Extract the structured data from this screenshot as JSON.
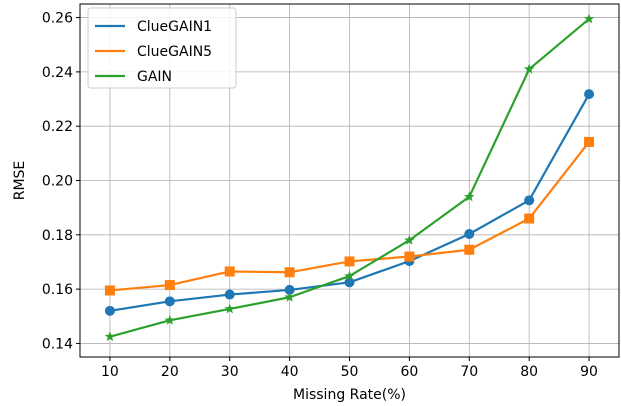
{
  "chart_data": {
    "type": "line",
    "title": "",
    "xlabel": "Missing Rate(%)",
    "ylabel": "RMSE",
    "x": [
      10,
      20,
      30,
      40,
      50,
      60,
      70,
      80,
      90
    ],
    "xlim": [
      5,
      95
    ],
    "ylim": [
      0.135,
      0.265
    ],
    "xticks": [
      10,
      20,
      30,
      40,
      50,
      60,
      70,
      80,
      90
    ],
    "yticks": [
      0.14,
      0.16,
      0.18,
      0.2,
      0.22,
      0.24,
      0.26
    ],
    "ytick_labels": [
      "0.14",
      "0.16",
      "0.18",
      "0.20",
      "0.22",
      "0.24",
      "0.26"
    ],
    "grid": true,
    "legend_position": "top-left",
    "series": [
      {
        "name": "ClueGAIN1",
        "color": "#1f77b4",
        "marker": "circle",
        "values": [
          0.152,
          0.1555,
          0.158,
          0.1597,
          0.1625,
          0.1703,
          0.1803,
          0.1927,
          0.2318
        ]
      },
      {
        "name": "ClueGAIN5",
        "color": "#ff7f0e",
        "marker": "square",
        "values": [
          0.1595,
          0.1615,
          0.1665,
          0.1662,
          0.1702,
          0.172,
          0.1745,
          0.186,
          0.2142
        ]
      },
      {
        "name": "GAIN",
        "color": "#2ca02c",
        "marker": "star",
        "values": [
          0.1425,
          0.1485,
          0.1527,
          0.157,
          0.1648,
          0.178,
          0.194,
          0.241,
          0.2595
        ]
      }
    ]
  }
}
